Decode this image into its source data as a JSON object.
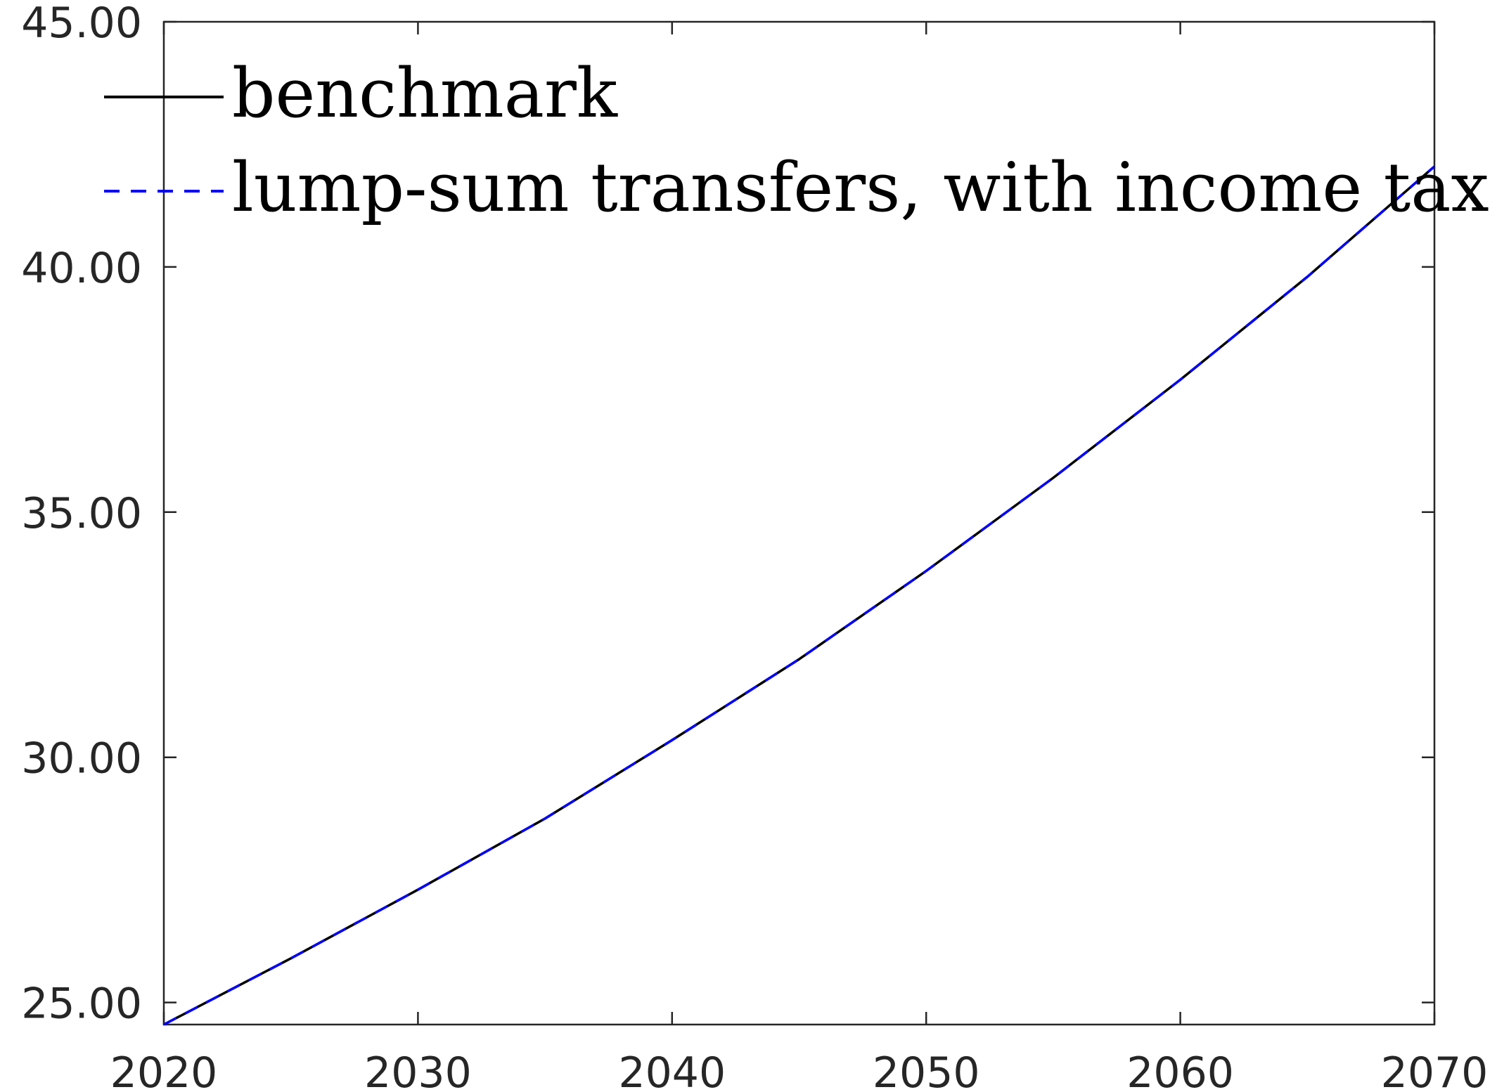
{
  "chart_data": {
    "type": "line",
    "title": "",
    "xlabel": "",
    "ylabel": "",
    "xlim": [
      2020,
      2070
    ],
    "ylim": [
      24.55,
      45.0
    ],
    "x_ticks": [
      2020,
      2030,
      2040,
      2050,
      2060,
      2070
    ],
    "x_tick_labels": [
      "2020",
      "2030",
      "2040",
      "2050",
      "2060",
      "2070"
    ],
    "y_ticks": [
      25,
      30,
      35,
      40,
      45
    ],
    "y_tick_labels": [
      "25.00",
      "30.00",
      "35.00",
      "40.00",
      "45.00"
    ],
    "grid": false,
    "legend": "top-left",
    "x": [
      2020,
      2025,
      2030,
      2035,
      2040,
      2045,
      2050,
      2055,
      2060,
      2065,
      2070
    ],
    "series": [
      {
        "name": "benchmark",
        "color": "#000000",
        "style": "solid",
        "values": [
          24.55,
          25.9,
          27.3,
          28.75,
          30.35,
          32.0,
          33.8,
          35.7,
          37.7,
          39.8,
          42.05
        ]
      },
      {
        "name": "lump-sum transfers, with income tax",
        "color": "#0000ff",
        "style": "dashed",
        "values": [
          24.55,
          25.9,
          27.3,
          28.75,
          30.35,
          32.0,
          33.8,
          35.7,
          37.7,
          39.8,
          42.05
        ]
      }
    ]
  }
}
